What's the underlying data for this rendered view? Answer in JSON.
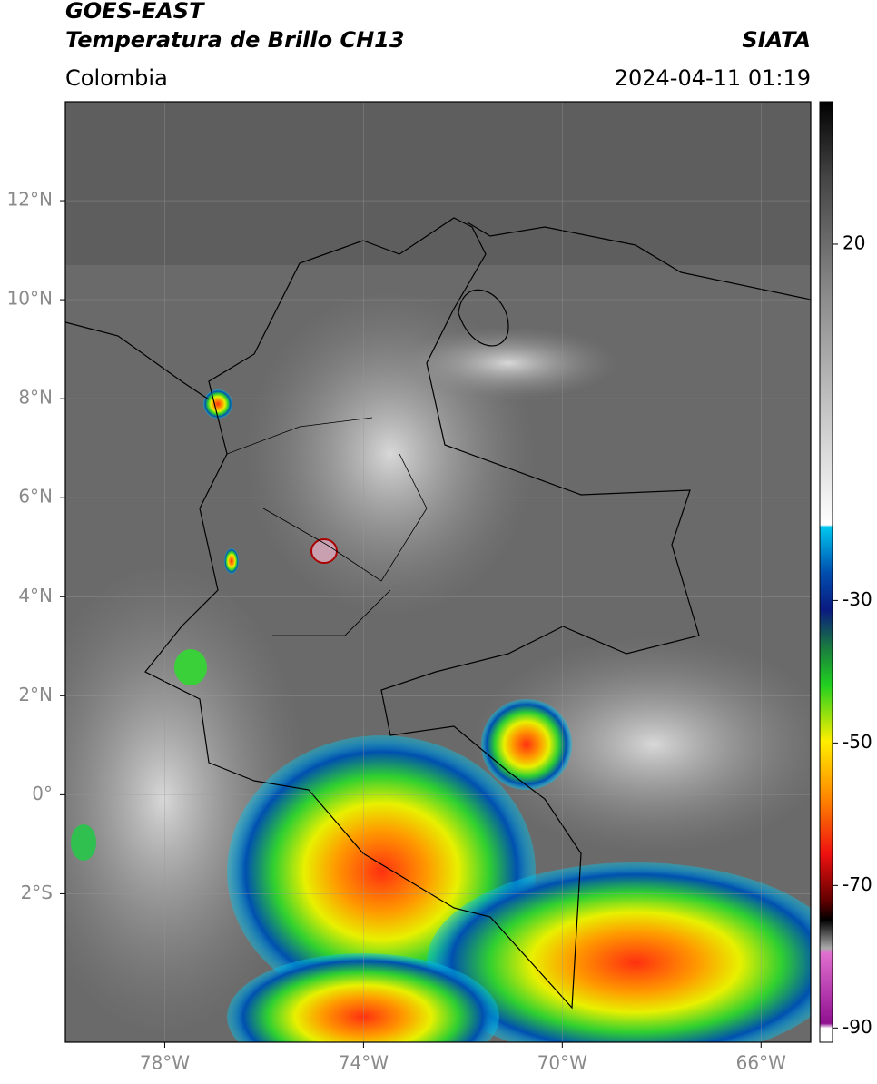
{
  "header": {
    "title": "GOES-EAST",
    "subtitle": "Temperatura de Brillo CH13",
    "source": "SIATA",
    "region": "Colombia",
    "datetime": "2024-04-11 01:19"
  },
  "map": {
    "xlim": [
      -80,
      -65
    ],
    "ylim": [
      -5,
      14
    ],
    "xticks": [
      {
        "value": -78,
        "label": "78°W"
      },
      {
        "value": -74,
        "label": "74°W"
      },
      {
        "value": -70,
        "label": "70°W"
      },
      {
        "value": -66,
        "label": "66°W"
      }
    ],
    "yticks": [
      {
        "value": 12,
        "label": "12°N"
      },
      {
        "value": 10,
        "label": "10°N"
      },
      {
        "value": 8,
        "label": "8°N"
      },
      {
        "value": 6,
        "label": "6°N"
      },
      {
        "value": 4,
        "label": "4°N"
      },
      {
        "value": 2,
        "label": "2°N"
      },
      {
        "value": 0,
        "label": "0°"
      },
      {
        "value": -2,
        "label": "2°S"
      }
    ]
  },
  "colorbar": {
    "lim": [
      -92,
      40
    ],
    "ticks": [
      20,
      -30,
      -50,
      -70,
      -90
    ]
  }
}
